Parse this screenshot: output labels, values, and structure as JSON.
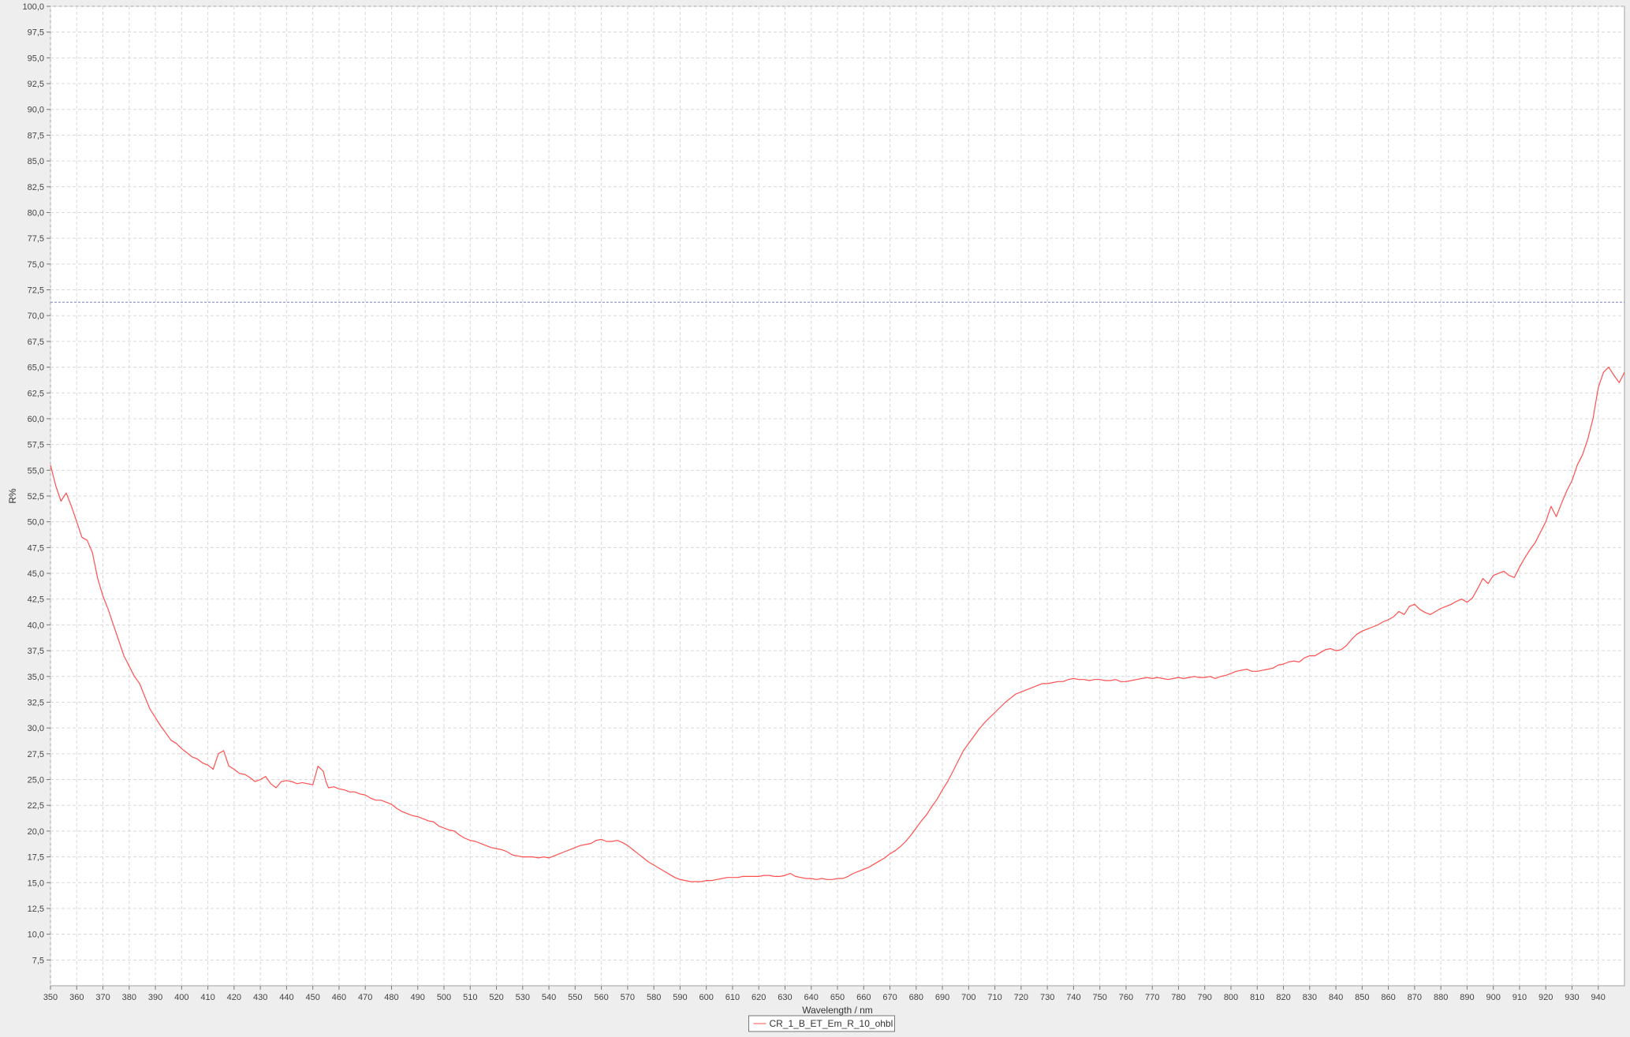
{
  "chart_data": {
    "type": "line",
    "title": "",
    "xlabel": "Wavelength / nm",
    "ylabel": "R%",
    "xlim": [
      350,
      950
    ],
    "ylim": [
      5,
      100
    ],
    "x_ticks": [
      350,
      360,
      370,
      380,
      390,
      400,
      410,
      420,
      430,
      440,
      450,
      460,
      470,
      480,
      490,
      500,
      510,
      520,
      530,
      540,
      550,
      560,
      570,
      580,
      590,
      600,
      610,
      620,
      630,
      640,
      650,
      660,
      670,
      680,
      690,
      700,
      710,
      720,
      730,
      740,
      750,
      760,
      770,
      780,
      790,
      800,
      810,
      820,
      830,
      840,
      850,
      860,
      870,
      880,
      890,
      900,
      910,
      920,
      930,
      940
    ],
    "y_ticks": [
      "7,5",
      "10,0",
      "12,5",
      "15,0",
      "17,5",
      "20,0",
      "22,5",
      "25,0",
      "27,5",
      "30,0",
      "32,5",
      "35,0",
      "37,5",
      "40,0",
      "42,5",
      "45,0",
      "47,5",
      "50,0",
      "52,5",
      "55,0",
      "57,5",
      "60,0",
      "62,5",
      "65,0",
      "67,5",
      "70,0",
      "72,5",
      "75,0",
      "77,5",
      "80,0",
      "82,5",
      "85,0",
      "87,5",
      "90,0",
      "92,5",
      "95,0",
      "97,5",
      "100,0"
    ],
    "grid": true,
    "legend_position": "bottom-center",
    "reference_line": {
      "y": 71.3,
      "color": "#8080cc"
    },
    "series": [
      {
        "name": "CR_1_B_ET_Em_R_10_ohbl",
        "color": "#ff5050",
        "points": [
          [
            350,
            55.5
          ],
          [
            352,
            53.5
          ],
          [
            354,
            52.0
          ],
          [
            356,
            52.8
          ],
          [
            358,
            51.5
          ],
          [
            360,
            50.0
          ],
          [
            362,
            48.5
          ],
          [
            364,
            48.2
          ],
          [
            366,
            47.0
          ],
          [
            368,
            44.5
          ],
          [
            370,
            42.8
          ],
          [
            372,
            41.5
          ],
          [
            374,
            40.0
          ],
          [
            376,
            38.5
          ],
          [
            378,
            37.0
          ],
          [
            380,
            36.0
          ],
          [
            382,
            35.0
          ],
          [
            384,
            34.3
          ],
          [
            386,
            33.0
          ],
          [
            388,
            31.8
          ],
          [
            390,
            31.0
          ],
          [
            392,
            30.2
          ],
          [
            394,
            29.5
          ],
          [
            396,
            28.8
          ],
          [
            398,
            28.5
          ],
          [
            400,
            28.0
          ],
          [
            402,
            27.6
          ],
          [
            404,
            27.2
          ],
          [
            406,
            27.0
          ],
          [
            408,
            26.6
          ],
          [
            410,
            26.4
          ],
          [
            412,
            26.0
          ],
          [
            414,
            27.5
          ],
          [
            416,
            27.8
          ],
          [
            418,
            26.3
          ],
          [
            420,
            26.0
          ],
          [
            422,
            25.6
          ],
          [
            424,
            25.5
          ],
          [
            426,
            25.2
          ],
          [
            428,
            24.8
          ],
          [
            430,
            25.0
          ],
          [
            432,
            25.3
          ],
          [
            434,
            24.6
          ],
          [
            436,
            24.2
          ],
          [
            438,
            24.8
          ],
          [
            440,
            24.9
          ],
          [
            442,
            24.8
          ],
          [
            444,
            24.6
          ],
          [
            446,
            24.7
          ],
          [
            448,
            24.6
          ],
          [
            450,
            24.5
          ],
          [
            452,
            26.3
          ],
          [
            454,
            25.8
          ],
          [
            455,
            24.8
          ],
          [
            456,
            24.2
          ],
          [
            458,
            24.3
          ],
          [
            460,
            24.1
          ],
          [
            462,
            24.0
          ],
          [
            464,
            23.8
          ],
          [
            466,
            23.8
          ],
          [
            468,
            23.6
          ],
          [
            470,
            23.5
          ],
          [
            472,
            23.2
          ],
          [
            474,
            23.0
          ],
          [
            476,
            23.0
          ],
          [
            478,
            22.8
          ],
          [
            480,
            22.6
          ],
          [
            482,
            22.2
          ],
          [
            484,
            21.9
          ],
          [
            486,
            21.7
          ],
          [
            488,
            21.5
          ],
          [
            490,
            21.4
          ],
          [
            492,
            21.2
          ],
          [
            494,
            21.0
          ],
          [
            496,
            20.9
          ],
          [
            498,
            20.5
          ],
          [
            500,
            20.3
          ],
          [
            502,
            20.1
          ],
          [
            504,
            20.0
          ],
          [
            506,
            19.6
          ],
          [
            508,
            19.3
          ],
          [
            510,
            19.1
          ],
          [
            512,
            19.0
          ],
          [
            514,
            18.8
          ],
          [
            516,
            18.6
          ],
          [
            518,
            18.4
          ],
          [
            520,
            18.3
          ],
          [
            522,
            18.2
          ],
          [
            524,
            18.0
          ],
          [
            526,
            17.7
          ],
          [
            528,
            17.6
          ],
          [
            530,
            17.5
          ],
          [
            532,
            17.5
          ],
          [
            534,
            17.5
          ],
          [
            536,
            17.4
          ],
          [
            538,
            17.5
          ],
          [
            540,
            17.4
          ],
          [
            542,
            17.6
          ],
          [
            544,
            17.8
          ],
          [
            546,
            18.0
          ],
          [
            548,
            18.2
          ],
          [
            550,
            18.4
          ],
          [
            552,
            18.6
          ],
          [
            554,
            18.7
          ],
          [
            556,
            18.8
          ],
          [
            558,
            19.1
          ],
          [
            560,
            19.2
          ],
          [
            562,
            19.0
          ],
          [
            564,
            19.0
          ],
          [
            566,
            19.1
          ],
          [
            568,
            18.9
          ],
          [
            570,
            18.6
          ],
          [
            572,
            18.2
          ],
          [
            574,
            17.8
          ],
          [
            576,
            17.4
          ],
          [
            578,
            17.0
          ],
          [
            580,
            16.7
          ],
          [
            582,
            16.4
          ],
          [
            584,
            16.1
          ],
          [
            586,
            15.8
          ],
          [
            588,
            15.5
          ],
          [
            590,
            15.3
          ],
          [
            592,
            15.2
          ],
          [
            594,
            15.1
          ],
          [
            596,
            15.1
          ],
          [
            598,
            15.1
          ],
          [
            600,
            15.2
          ],
          [
            602,
            15.2
          ],
          [
            604,
            15.3
          ],
          [
            606,
            15.4
          ],
          [
            608,
            15.5
          ],
          [
            610,
            15.5
          ],
          [
            612,
            15.5
          ],
          [
            614,
            15.6
          ],
          [
            616,
            15.6
          ],
          [
            618,
            15.6
          ],
          [
            620,
            15.6
          ],
          [
            622,
            15.7
          ],
          [
            624,
            15.7
          ],
          [
            626,
            15.6
          ],
          [
            628,
            15.6
          ],
          [
            630,
            15.7
          ],
          [
            632,
            15.9
          ],
          [
            634,
            15.6
          ],
          [
            636,
            15.5
          ],
          [
            638,
            15.4
          ],
          [
            640,
            15.4
          ],
          [
            642,
            15.3
          ],
          [
            644,
            15.4
          ],
          [
            646,
            15.3
          ],
          [
            648,
            15.3
          ],
          [
            650,
            15.4
          ],
          [
            652,
            15.4
          ],
          [
            654,
            15.6
          ],
          [
            656,
            15.9
          ],
          [
            658,
            16.1
          ],
          [
            660,
            16.3
          ],
          [
            662,
            16.5
          ],
          [
            664,
            16.8
          ],
          [
            666,
            17.1
          ],
          [
            668,
            17.4
          ],
          [
            670,
            17.8
          ],
          [
            672,
            18.1
          ],
          [
            674,
            18.5
          ],
          [
            676,
            19.0
          ],
          [
            678,
            19.6
          ],
          [
            680,
            20.3
          ],
          [
            682,
            21.0
          ],
          [
            684,
            21.6
          ],
          [
            686,
            22.4
          ],
          [
            688,
            23.1
          ],
          [
            690,
            24.0
          ],
          [
            692,
            24.8
          ],
          [
            694,
            25.8
          ],
          [
            696,
            26.8
          ],
          [
            698,
            27.8
          ],
          [
            700,
            28.5
          ],
          [
            702,
            29.2
          ],
          [
            704,
            29.9
          ],
          [
            706,
            30.5
          ],
          [
            708,
            31.0
          ],
          [
            710,
            31.5
          ],
          [
            712,
            32.0
          ],
          [
            714,
            32.5
          ],
          [
            716,
            32.9
          ],
          [
            718,
            33.3
          ],
          [
            720,
            33.5
          ],
          [
            722,
            33.7
          ],
          [
            724,
            33.9
          ],
          [
            726,
            34.1
          ],
          [
            728,
            34.3
          ],
          [
            730,
            34.3
          ],
          [
            732,
            34.4
          ],
          [
            734,
            34.5
          ],
          [
            736,
            34.5
          ],
          [
            738,
            34.7
          ],
          [
            740,
            34.8
          ],
          [
            742,
            34.7
          ],
          [
            744,
            34.7
          ],
          [
            746,
            34.6
          ],
          [
            748,
            34.7
          ],
          [
            750,
            34.7
          ],
          [
            752,
            34.6
          ],
          [
            754,
            34.6
          ],
          [
            756,
            34.7
          ],
          [
            758,
            34.5
          ],
          [
            760,
            34.5
          ],
          [
            762,
            34.6
          ],
          [
            764,
            34.7
          ],
          [
            766,
            34.8
          ],
          [
            768,
            34.9
          ],
          [
            770,
            34.8
          ],
          [
            772,
            34.9
          ],
          [
            774,
            34.8
          ],
          [
            776,
            34.7
          ],
          [
            778,
            34.8
          ],
          [
            780,
            34.9
          ],
          [
            782,
            34.8
          ],
          [
            784,
            34.9
          ],
          [
            786,
            35.0
          ],
          [
            788,
            34.9
          ],
          [
            790,
            34.9
          ],
          [
            792,
            35.0
          ],
          [
            794,
            34.8
          ],
          [
            796,
            35.0
          ],
          [
            798,
            35.1
          ],
          [
            800,
            35.3
          ],
          [
            802,
            35.5
          ],
          [
            804,
            35.6
          ],
          [
            806,
            35.7
          ],
          [
            808,
            35.5
          ],
          [
            810,
            35.5
          ],
          [
            812,
            35.6
          ],
          [
            814,
            35.7
          ],
          [
            816,
            35.8
          ],
          [
            818,
            36.1
          ],
          [
            820,
            36.2
          ],
          [
            822,
            36.4
          ],
          [
            824,
            36.5
          ],
          [
            826,
            36.4
          ],
          [
            828,
            36.8
          ],
          [
            830,
            37.0
          ],
          [
            832,
            37.0
          ],
          [
            834,
            37.3
          ],
          [
            836,
            37.6
          ],
          [
            838,
            37.7
          ],
          [
            840,
            37.5
          ],
          [
            842,
            37.6
          ],
          [
            844,
            38.0
          ],
          [
            846,
            38.6
          ],
          [
            848,
            39.1
          ],
          [
            850,
            39.4
          ],
          [
            852,
            39.6
          ],
          [
            854,
            39.8
          ],
          [
            856,
            40.0
          ],
          [
            858,
            40.3
          ],
          [
            860,
            40.5
          ],
          [
            862,
            40.8
          ],
          [
            864,
            41.3
          ],
          [
            866,
            41.0
          ],
          [
            868,
            41.8
          ],
          [
            870,
            42.0
          ],
          [
            872,
            41.5
          ],
          [
            874,
            41.2
          ],
          [
            876,
            41.0
          ],
          [
            878,
            41.3
          ],
          [
            880,
            41.6
          ],
          [
            882,
            41.8
          ],
          [
            884,
            42.0
          ],
          [
            886,
            42.3
          ],
          [
            888,
            42.5
          ],
          [
            890,
            42.2
          ],
          [
            892,
            42.6
          ],
          [
            894,
            43.5
          ],
          [
            896,
            44.5
          ],
          [
            898,
            44.0
          ],
          [
            900,
            44.8
          ],
          [
            902,
            45.0
          ],
          [
            904,
            45.2
          ],
          [
            906,
            44.8
          ],
          [
            908,
            44.6
          ],
          [
            910,
            45.6
          ],
          [
            912,
            46.5
          ],
          [
            914,
            47.3
          ],
          [
            916,
            48.0
          ],
          [
            918,
            49.0
          ],
          [
            920,
            50.0
          ],
          [
            922,
            51.5
          ],
          [
            924,
            50.5
          ],
          [
            926,
            51.8
          ],
          [
            928,
            53.0
          ],
          [
            930,
            54.0
          ],
          [
            932,
            55.5
          ],
          [
            934,
            56.5
          ],
          [
            936,
            58.0
          ],
          [
            938,
            60.0
          ],
          [
            940,
            63.0
          ],
          [
            942,
            64.5
          ],
          [
            944,
            65.0
          ],
          [
            946,
            64.2
          ],
          [
            948,
            63.5
          ],
          [
            950,
            64.5
          ]
        ]
      }
    ]
  }
}
